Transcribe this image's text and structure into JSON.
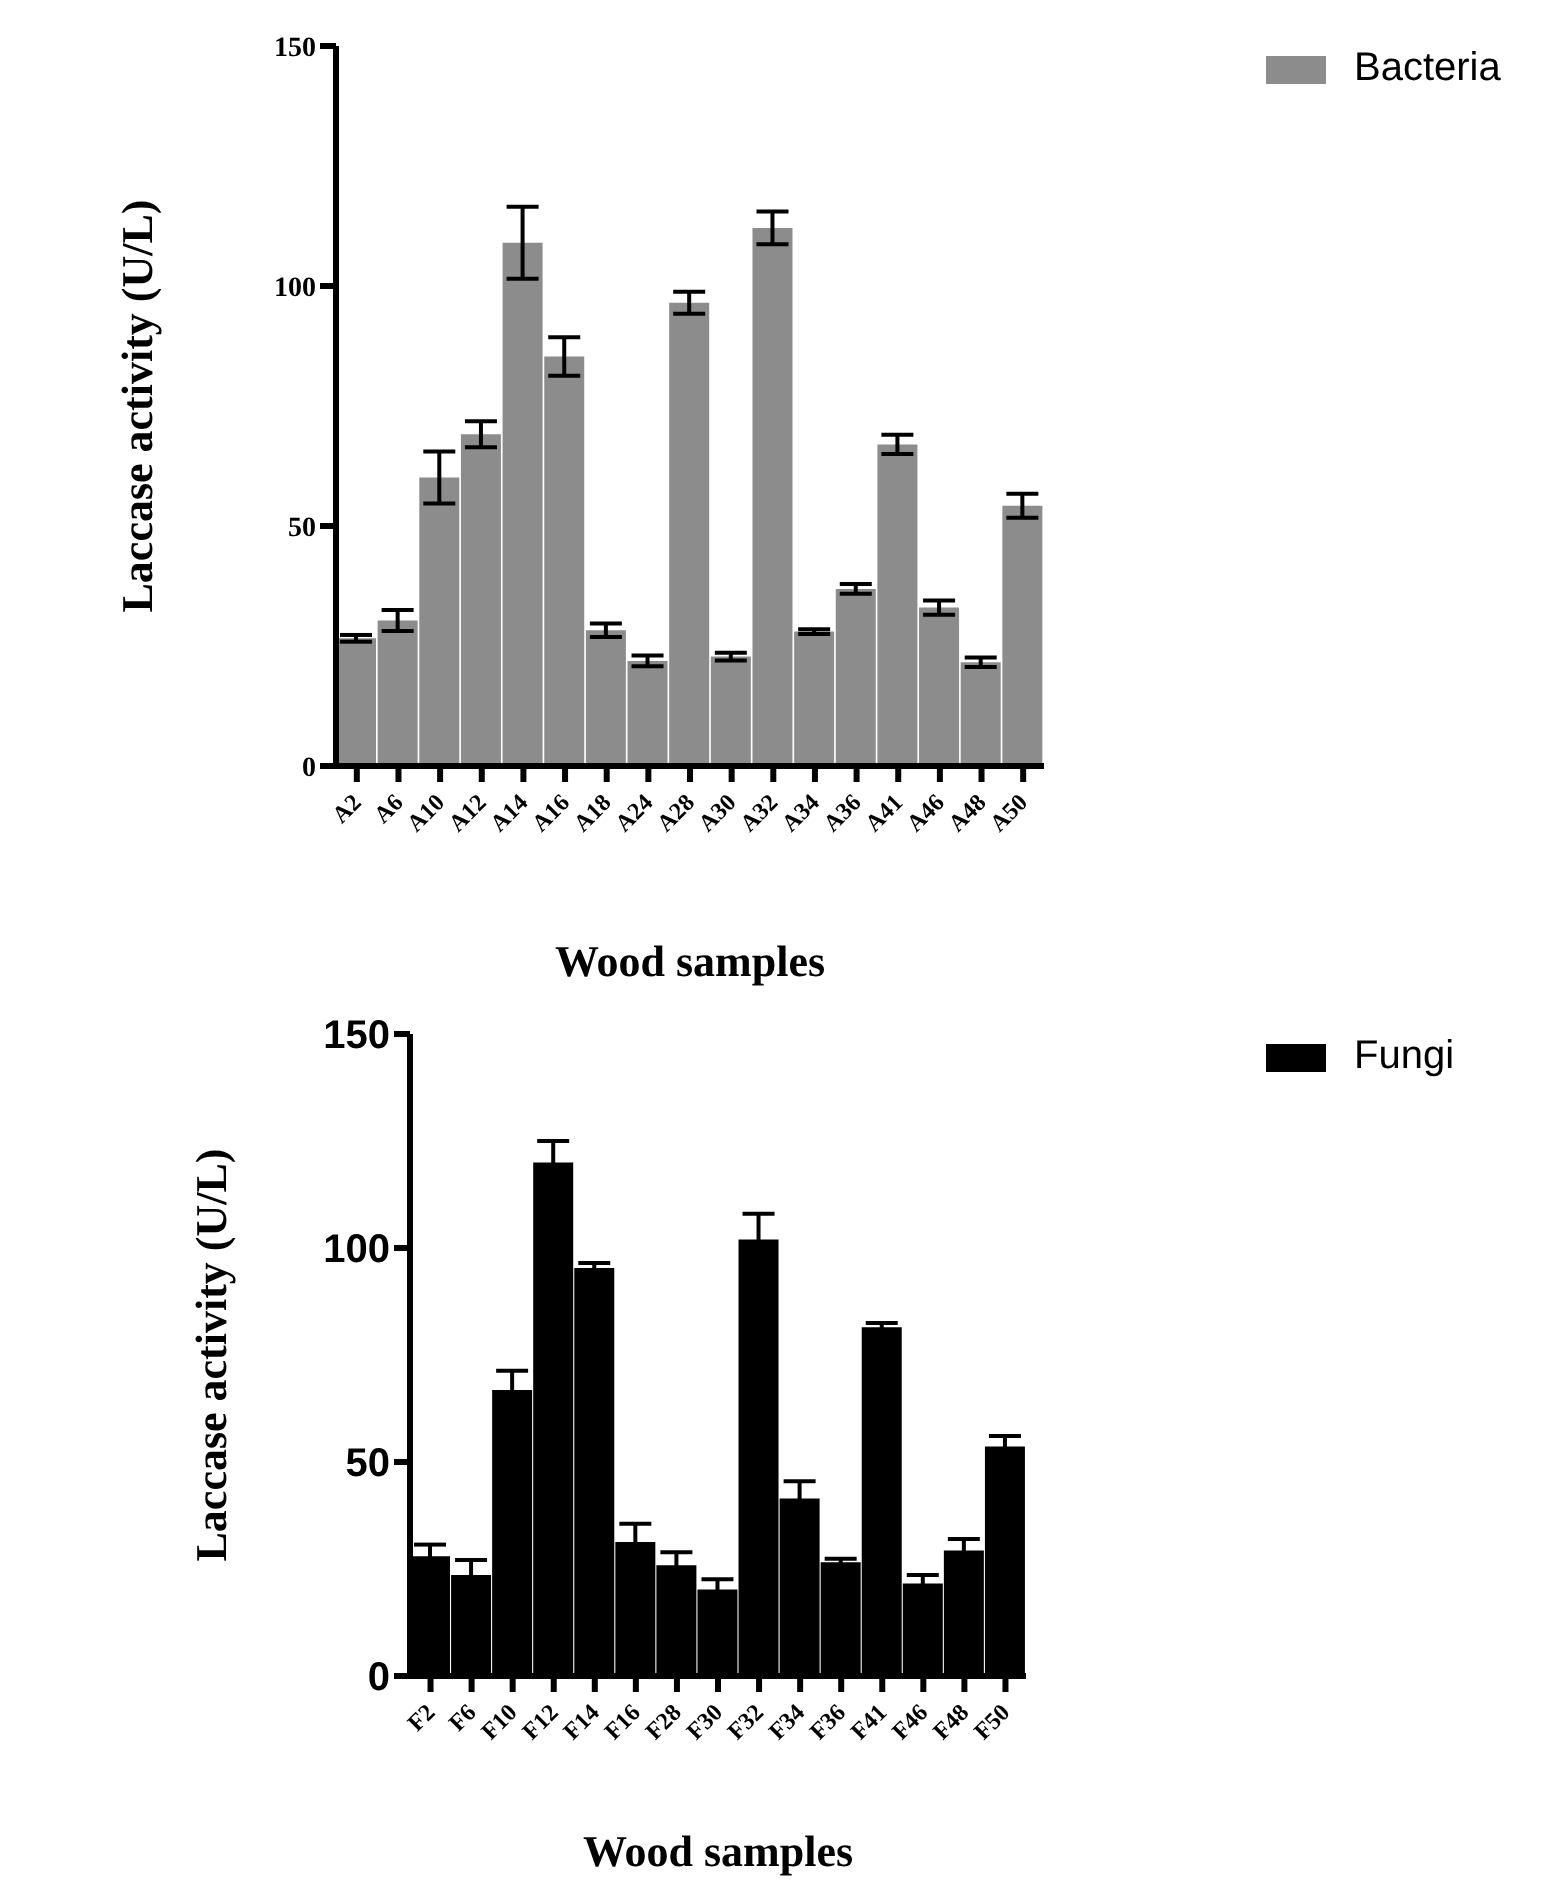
{
  "chart_data": [
    {
      "type": "bar",
      "xlabel": "Wood samples",
      "ylabel": "Laccase activity (U/L)",
      "categories": [
        "A2",
        "A6",
        "A10",
        "A12",
        "A14",
        "A16",
        "A18",
        "A24",
        "A28",
        "A30",
        "A32",
        "A34",
        "A36",
        "A41",
        "A46",
        "A48",
        "A50"
      ],
      "series": [
        {
          "name": "Bacteria",
          "color": "#8c8c8c",
          "values": [
            26.6,
            30.3,
            60.1,
            69.1,
            109,
            85.3,
            28.3,
            21.9,
            96.5,
            22.8,
            112.1,
            28,
            36.9,
            67,
            33,
            21.6,
            54.2
          ],
          "errors": [
            0.7,
            2.2,
            5.4,
            2.7,
            7.5,
            4,
            1.4,
            1.1,
            2.3,
            0.8,
            3.4,
            0.5,
            1,
            2,
            1.5,
            1,
            2.5
          ]
        }
      ],
      "ylim": [
        0,
        150
      ],
      "yticks": [
        0,
        50,
        100,
        150
      ],
      "grid": false,
      "legend": "top right"
    },
    {
      "type": "bar",
      "xlabel": "Wood samples",
      "ylabel": "Laccase activity (U/L)",
      "categories": [
        "F2",
        "F6",
        "F10",
        "F12",
        "F14",
        "F16",
        "F28",
        "F30",
        "F32",
        "F34",
        "F36",
        "F41",
        "F46",
        "F48",
        "F50"
      ],
      "series": [
        {
          "name": "Fungi",
          "color": "#000000",
          "values": [
            28,
            23.6,
            66.8,
            120,
            95.3,
            31.3,
            25.9,
            20.2,
            102,
            41.5,
            26.6,
            81.5,
            21.6,
            29.3,
            53.6
          ],
          "errors": [
            2.7,
            3.5,
            4.5,
            5,
            1.2,
            4.3,
            3,
            2.4,
            6,
            4,
            0.8,
            1,
            2,
            2.7,
            2.5
          ]
        }
      ],
      "ylim": [
        0,
        150
      ],
      "yticks": [
        0,
        50,
        100,
        150
      ],
      "grid": false,
      "legend": "top right"
    }
  ]
}
